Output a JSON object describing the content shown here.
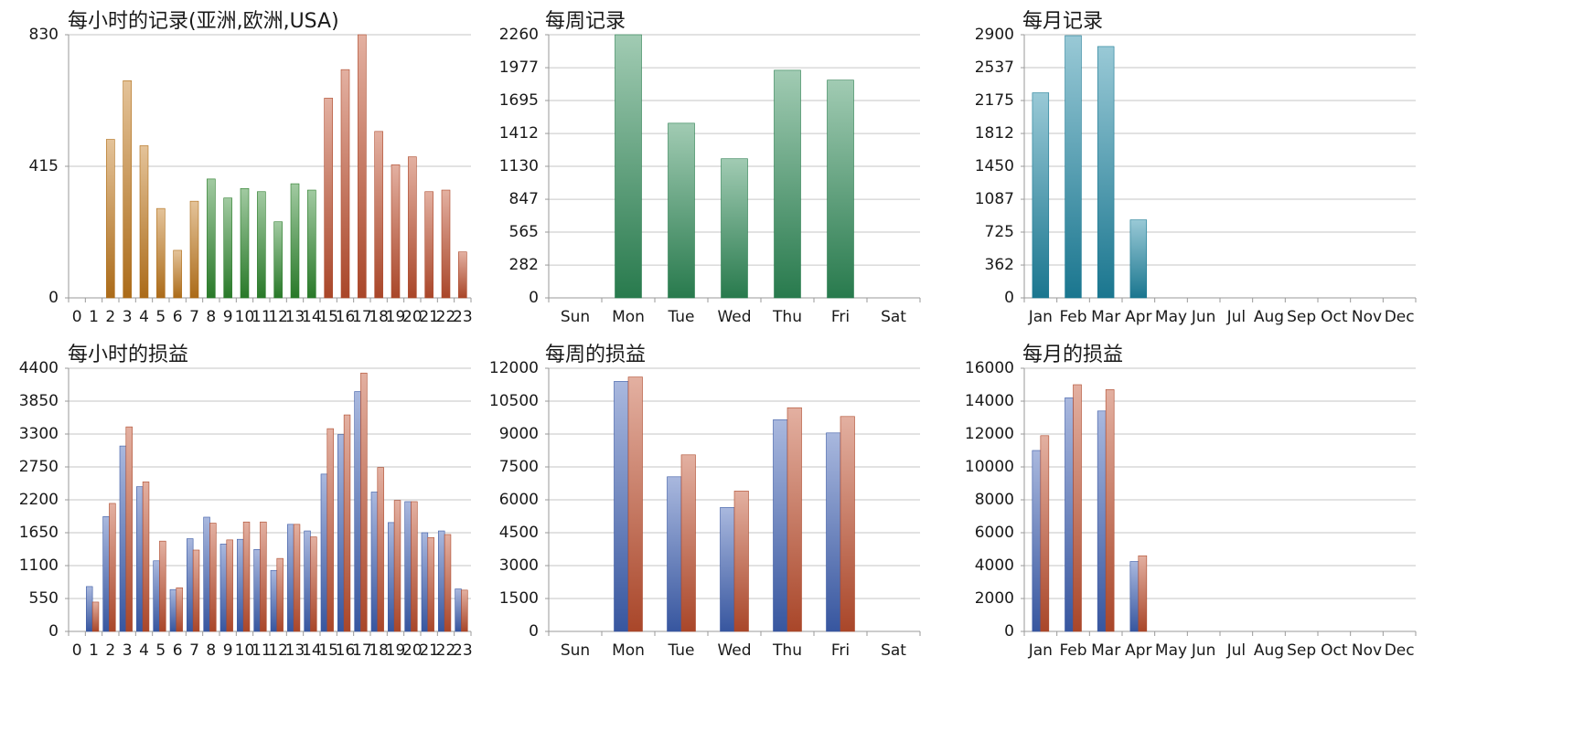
{
  "chart_data": [
    {
      "type": "bar",
      "title": "每小时的记录(亚洲,欧洲,USA)",
      "categories": [
        "0",
        "1",
        "2",
        "3",
        "4",
        "5",
        "6",
        "7",
        "8",
        "9",
        "10",
        "11",
        "12",
        "13",
        "14",
        "15",
        "16",
        "17",
        "18",
        "19",
        "20",
        "21",
        "22",
        "23"
      ],
      "series": [
        {
          "values": [
            0,
            0,
            500,
            685,
            480,
            282,
            150,
            305,
            375,
            315,
            345,
            335,
            240,
            360,
            340,
            630,
            720,
            830,
            525,
            420,
            445,
            335,
            340,
            145
          ]
        }
      ],
      "segment_colors": [
        "#c27a1c",
        "#c27a1c",
        "#c27a1c",
        "#c27a1c",
        "#c27a1c",
        "#c27a1c",
        "#c27a1c",
        "#c27a1c",
        "#2f8a2f",
        "#2f8a2f",
        "#2f8a2f",
        "#2f8a2f",
        "#2f8a2f",
        "#2f8a2f",
        "#2f8a2f",
        "#c0502f",
        "#c0502f",
        "#c0502f",
        "#c0502f",
        "#c0502f",
        "#c0502f",
        "#c0502f",
        "#c0502f",
        "#c0502f"
      ],
      "yticks": [
        "0",
        "415",
        "830"
      ],
      "ylim": [
        0,
        830
      ],
      "grid": true
    },
    {
      "type": "bar",
      "title": "每周记录",
      "categories": [
        "Sun",
        "Mon",
        "Tue",
        "Wed",
        "Thu",
        "Fri",
        "Sat"
      ],
      "series": [
        {
          "values": [
            0,
            2260,
            1500,
            1195,
            1955,
            1870,
            0
          ],
          "color": "#2e8b57"
        }
      ],
      "yticks": [
        "0",
        "282",
        "565",
        "847",
        "1130",
        "1412",
        "1695",
        "1977",
        "2260"
      ],
      "ylim": [
        0,
        2260
      ],
      "grid": true
    },
    {
      "type": "bar",
      "title": "每月记录",
      "categories": [
        "Jan",
        "Feb",
        "Mar",
        "Apr",
        "May",
        "Jun",
        "Jul",
        "Aug",
        "Sep",
        "Oct",
        "Nov",
        "Dec"
      ],
      "series": [
        {
          "values": [
            2260,
            2890,
            2770,
            860,
            0,
            0,
            0,
            0,
            0,
            0,
            0,
            0
          ],
          "color": "#1d86a3"
        }
      ],
      "yticks": [
        "0",
        "362",
        "725",
        "1087",
        "1450",
        "1812",
        "2175",
        "2537",
        "2900"
      ],
      "ylim": [
        0,
        2900
      ],
      "grid": true
    },
    {
      "type": "bar",
      "title": "每小时的损益",
      "categories": [
        "0",
        "1",
        "2",
        "3",
        "4",
        "5",
        "6",
        "7",
        "8",
        "9",
        "10",
        "11",
        "12",
        "13",
        "14",
        "15",
        "16",
        "17",
        "18",
        "19",
        "20",
        "21",
        "22",
        "23"
      ],
      "series": [
        {
          "values": [
            0,
            750,
            1920,
            3100,
            2420,
            1180,
            700,
            1550,
            1910,
            1460,
            1540,
            1370,
            1020,
            1790,
            1680,
            2630,
            3290,
            4010,
            2330,
            1820,
            2170,
            1650,
            1680,
            710
          ],
          "color": "#3f62b5"
        },
        {
          "values": [
            0,
            490,
            2140,
            3420,
            2500,
            1510,
            730,
            1360,
            1810,
            1530,
            1830,
            1830,
            1220,
            1790,
            1580,
            3390,
            3620,
            4320,
            2740,
            2190,
            2170,
            1570,
            1620,
            690
          ],
          "color": "#c0502f"
        }
      ],
      "yticks": [
        "0",
        "550",
        "1100",
        "1650",
        "2200",
        "2750",
        "3300",
        "3850",
        "4400"
      ],
      "ylim": [
        0,
        4400
      ],
      "grid": true
    },
    {
      "type": "bar",
      "title": "每周的损益",
      "categories": [
        "Sun",
        "Mon",
        "Tue",
        "Wed",
        "Thu",
        "Fri",
        "Sat"
      ],
      "series": [
        {
          "values": [
            0,
            11400,
            7050,
            5650,
            9650,
            9050,
            0
          ],
          "color": "#3f62b5"
        },
        {
          "values": [
            0,
            11600,
            8050,
            6400,
            10200,
            9800,
            0
          ],
          "color": "#c0502f"
        }
      ],
      "yticks": [
        "0",
        "1500",
        "3000",
        "4500",
        "6000",
        "7500",
        "9000",
        "10500",
        "12000"
      ],
      "ylim": [
        0,
        12000
      ],
      "grid": true
    },
    {
      "type": "bar",
      "title": "每月的损益",
      "categories": [
        "Jan",
        "Feb",
        "Mar",
        "Apr",
        "May",
        "Jun",
        "Jul",
        "Aug",
        "Sep",
        "Oct",
        "Nov",
        "Dec"
      ],
      "series": [
        {
          "values": [
            11000,
            14200,
            13400,
            4250,
            0,
            0,
            0,
            0,
            0,
            0,
            0,
            0
          ],
          "color": "#3f62b5"
        },
        {
          "values": [
            11900,
            15000,
            14700,
            4600,
            0,
            0,
            0,
            0,
            0,
            0,
            0,
            0
          ],
          "color": "#c0502f"
        }
      ],
      "yticks": [
        "0",
        "2000",
        "4000",
        "6000",
        "8000",
        "10000",
        "12000",
        "14000",
        "16000"
      ],
      "ylim": [
        0,
        16000
      ],
      "grid": true
    }
  ]
}
